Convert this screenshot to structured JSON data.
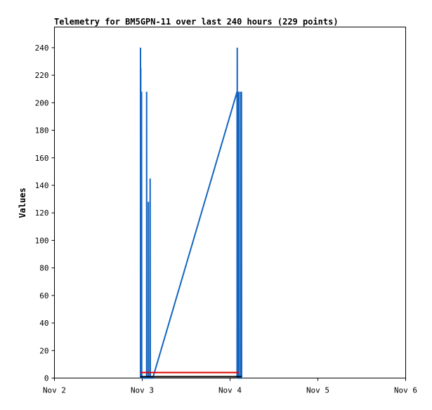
{
  "chart_data": {
    "type": "line",
    "title": "Telemetry for BM5GPN-11 over last 240 hours (229 points)",
    "xlabel": "",
    "ylabel": "Values",
    "x_ticks": [
      "Nov 2",
      "Nov 3",
      "Nov 4",
      "Nov 5",
      "Nov 6"
    ],
    "y_ticks": [
      "0",
      "20",
      "40",
      "60",
      "80",
      "100",
      "120",
      "140",
      "160",
      "180",
      "200",
      "220",
      "240"
    ],
    "xlim_days": [
      0,
      4
    ],
    "ylim": [
      0,
      255
    ],
    "series": [
      {
        "color": "#1565c0",
        "points": [
          [
            0.98,
            0
          ],
          [
            0.98,
            240
          ],
          [
            0.982,
            0
          ],
          [
            0.983,
            225
          ],
          [
            0.985,
            0
          ],
          [
            0.986,
            208
          ],
          [
            0.987,
            0
          ],
          [
            0.988,
            104
          ],
          [
            0.99,
            0
          ],
          [
            0.992,
            208
          ],
          [
            0.994,
            0
          ],
          [
            1.05,
            0
          ],
          [
            1.05,
            208
          ],
          [
            1.052,
            0
          ],
          [
            1.07,
            0
          ],
          [
            1.07,
            128
          ],
          [
            1.072,
            0
          ],
          [
            1.09,
            0
          ],
          [
            1.09,
            145
          ],
          [
            1.092,
            0
          ],
          [
            1.1,
            0
          ],
          [
            1.12,
            0
          ],
          [
            2.08,
            208
          ],
          [
            2.08,
            0
          ],
          [
            2.082,
            240
          ],
          [
            2.085,
            0
          ],
          [
            2.087,
            208
          ],
          [
            2.09,
            0
          ],
          [
            2.095,
            0
          ],
          [
            2.095,
            104
          ],
          [
            2.097,
            0
          ],
          [
            2.1,
            0
          ],
          [
            2.1,
            208
          ],
          [
            2.102,
            0
          ],
          [
            2.12,
            0
          ],
          [
            2.12,
            208
          ],
          [
            2.122,
            0
          ],
          [
            2.125,
            0
          ],
          [
            2.125,
            192
          ],
          [
            2.127,
            0
          ],
          [
            2.13,
            0
          ],
          [
            2.13,
            208
          ],
          [
            2.132,
            0
          ]
        ]
      },
      {
        "color": "#e00000",
        "points": [
          [
            0.98,
            4
          ],
          [
            2.1,
            4
          ]
        ]
      },
      {
        "color": "#000000",
        "points": [
          [
            0.98,
            1
          ],
          [
            2.13,
            1
          ]
        ]
      }
    ],
    "grid": false,
    "legend": "none"
  }
}
